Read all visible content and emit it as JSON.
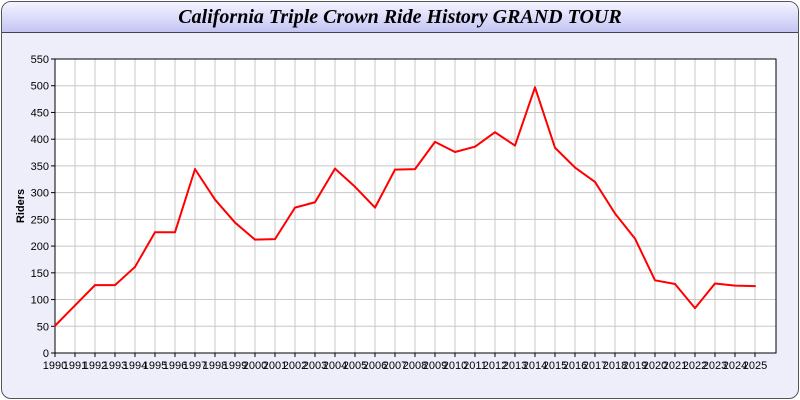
{
  "chart_data": {
    "type": "line",
    "title": "California Triple Crown Ride History GRAND TOUR",
    "xlabel": "",
    "ylabel": "Riders",
    "ylim": [
      0,
      550
    ],
    "yticks": [
      0,
      50,
      100,
      150,
      200,
      250,
      300,
      350,
      400,
      450,
      500,
      550
    ],
    "grid": true,
    "line_color": "#ff0000",
    "x": [
      1990,
      1991,
      1992,
      1993,
      1994,
      1995,
      1996,
      1997,
      1998,
      1999,
      2000,
      2001,
      2002,
      2003,
      2004,
      2005,
      2006,
      2007,
      2008,
      2009,
      2010,
      2011,
      2012,
      2013,
      2014,
      2015,
      2016,
      2017,
      2018,
      2019,
      2020,
      2021,
      2022,
      2023,
      2024,
      2025
    ],
    "series": [
      {
        "values": [
          51,
          89,
          127,
          127,
          161,
          226,
          226,
          344,
          287,
          244,
          212,
          213,
          272,
          282,
          345,
          311,
          272,
          343,
          344,
          395,
          376,
          386,
          413,
          388,
          497,
          384,
          347,
          320,
          261,
          214,
          136,
          129,
          84,
          130,
          126,
          125
        ]
      }
    ]
  }
}
